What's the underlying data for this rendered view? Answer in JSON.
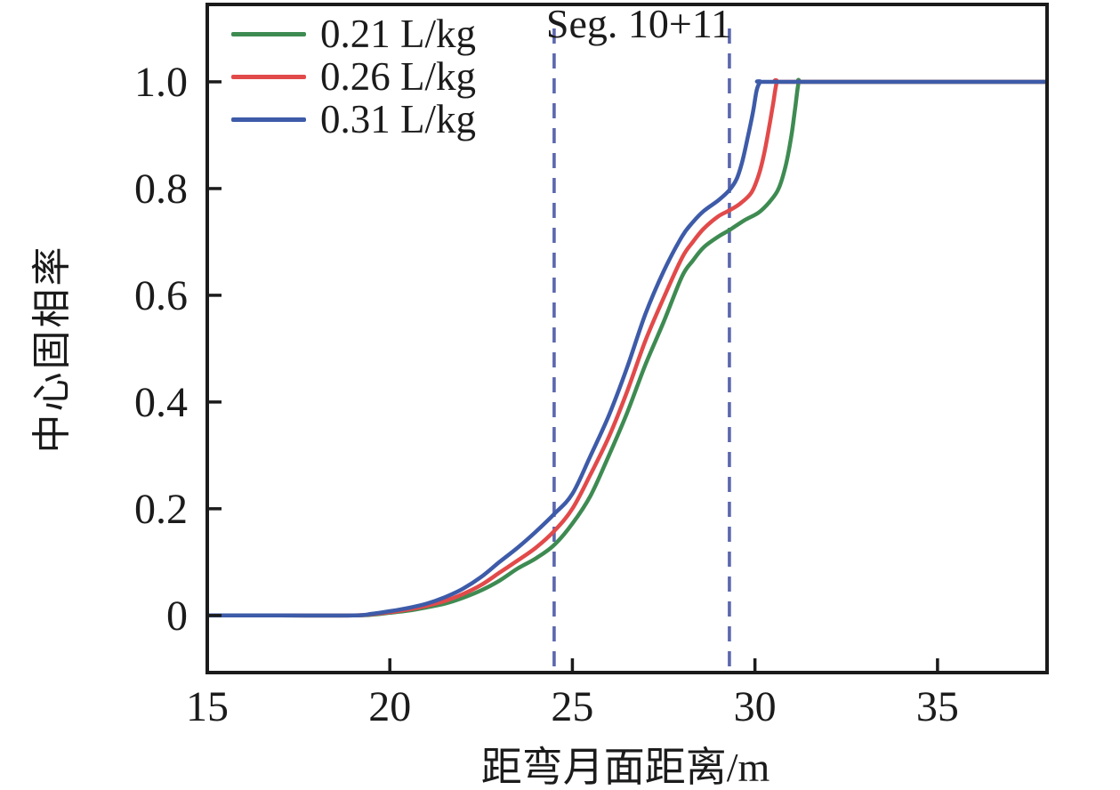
{
  "chart_data": {
    "type": "line",
    "title": "Seg. 10+11",
    "xlabel": "距弯月面距离/m",
    "ylabel": "中心固相率",
    "xlim": [
      15,
      38
    ],
    "ylim": [
      -0.107,
      1.145
    ],
    "xticks": [
      15,
      20,
      25,
      30,
      35
    ],
    "xtick_labels": [
      "15",
      "20",
      "25",
      "30",
      "35"
    ],
    "yticks": [
      0,
      0.2,
      0.4,
      0.6,
      0.8,
      1.0
    ],
    "ytick_labels": [
      "0",
      "0.2",
      "0.4",
      "0.6",
      "0.8",
      "1.0"
    ],
    "grid": false,
    "legend_position": "top-left",
    "frame_color": "#1b1b1b",
    "annotations": {
      "region_label": "Seg. 10+11",
      "dashed_vlines": [
        24.5,
        29.3
      ],
      "vline_top_value": 1.1,
      "vline_color": "#5b67ad"
    },
    "series": [
      {
        "name": "0.21 L/kg",
        "color": "#3e8b52",
        "points": [
          [
            15,
            0
          ],
          [
            17,
            0
          ],
          [
            19,
            0
          ],
          [
            19.6,
            0.002
          ],
          [
            20,
            0.005
          ],
          [
            20.5,
            0.009
          ],
          [
            21,
            0.015
          ],
          [
            21.5,
            0.022
          ],
          [
            22,
            0.033
          ],
          [
            22.5,
            0.047
          ],
          [
            23,
            0.065
          ],
          [
            23.5,
            0.088
          ],
          [
            24,
            0.107
          ],
          [
            24.5,
            0.132
          ],
          [
            25,
            0.172
          ],
          [
            25.5,
            0.225
          ],
          [
            26,
            0.3
          ],
          [
            26.5,
            0.38
          ],
          [
            27,
            0.47
          ],
          [
            27.5,
            0.55
          ],
          [
            28,
            0.635
          ],
          [
            28.3,
            0.665
          ],
          [
            28.6,
            0.69
          ],
          [
            29,
            0.71
          ],
          [
            29.3,
            0.722
          ],
          [
            29.7,
            0.74
          ],
          [
            30.1,
            0.755
          ],
          [
            30.4,
            0.775
          ],
          [
            30.65,
            0.8
          ],
          [
            30.85,
            0.845
          ],
          [
            31,
            0.9
          ],
          [
            31.1,
            0.95
          ],
          [
            31.2,
            1.0
          ],
          [
            31.3,
            1.0
          ],
          [
            32.5,
            1.0
          ],
          [
            38,
            1.0
          ]
        ]
      },
      {
        "name": "0.26 L/kg",
        "color": "#e24a4a",
        "points": [
          [
            15,
            0
          ],
          [
            17,
            0
          ],
          [
            19,
            0
          ],
          [
            19.6,
            0.003
          ],
          [
            20,
            0.006
          ],
          [
            20.5,
            0.011
          ],
          [
            21,
            0.018
          ],
          [
            21.5,
            0.027
          ],
          [
            22,
            0.04
          ],
          [
            22.5,
            0.057
          ],
          [
            23,
            0.08
          ],
          [
            23.5,
            0.103
          ],
          [
            24,
            0.127
          ],
          [
            24.5,
            0.158
          ],
          [
            25,
            0.2
          ],
          [
            25.5,
            0.265
          ],
          [
            26,
            0.335
          ],
          [
            26.5,
            0.42
          ],
          [
            27,
            0.515
          ],
          [
            27.5,
            0.595
          ],
          [
            28,
            0.67
          ],
          [
            28.3,
            0.7
          ],
          [
            28.6,
            0.725
          ],
          [
            29,
            0.748
          ],
          [
            29.3,
            0.759
          ],
          [
            29.6,
            0.772
          ],
          [
            29.9,
            0.792
          ],
          [
            30.1,
            0.825
          ],
          [
            30.25,
            0.865
          ],
          [
            30.4,
            0.92
          ],
          [
            30.5,
            0.96
          ],
          [
            30.6,
            1.0
          ],
          [
            30.7,
            1.0
          ],
          [
            32.5,
            1.0
          ],
          [
            38,
            1.0
          ]
        ]
      },
      {
        "name": "0.31 L/kg",
        "color": "#3d5ba8",
        "points": [
          [
            15,
            0
          ],
          [
            17,
            0
          ],
          [
            19,
            0
          ],
          [
            19.5,
            0.003
          ],
          [
            20,
            0.008
          ],
          [
            20.5,
            0.014
          ],
          [
            21,
            0.022
          ],
          [
            21.5,
            0.034
          ],
          [
            22,
            0.05
          ],
          [
            22.5,
            0.072
          ],
          [
            23,
            0.1
          ],
          [
            23.5,
            0.127
          ],
          [
            24,
            0.157
          ],
          [
            24.5,
            0.19
          ],
          [
            25,
            0.228
          ],
          [
            25.5,
            0.3
          ],
          [
            26,
            0.375
          ],
          [
            26.5,
            0.465
          ],
          [
            27,
            0.565
          ],
          [
            27.5,
            0.645
          ],
          [
            28,
            0.71
          ],
          [
            28.3,
            0.737
          ],
          [
            28.6,
            0.758
          ],
          [
            29,
            0.778
          ],
          [
            29.3,
            0.797
          ],
          [
            29.5,
            0.818
          ],
          [
            29.65,
            0.85
          ],
          [
            29.8,
            0.895
          ],
          [
            29.95,
            0.945
          ],
          [
            30.05,
            0.985
          ],
          [
            30.15,
            1.0
          ],
          [
            30.25,
            1.0
          ],
          [
            32.5,
            1.0
          ],
          [
            38,
            1.0
          ]
        ]
      }
    ]
  }
}
